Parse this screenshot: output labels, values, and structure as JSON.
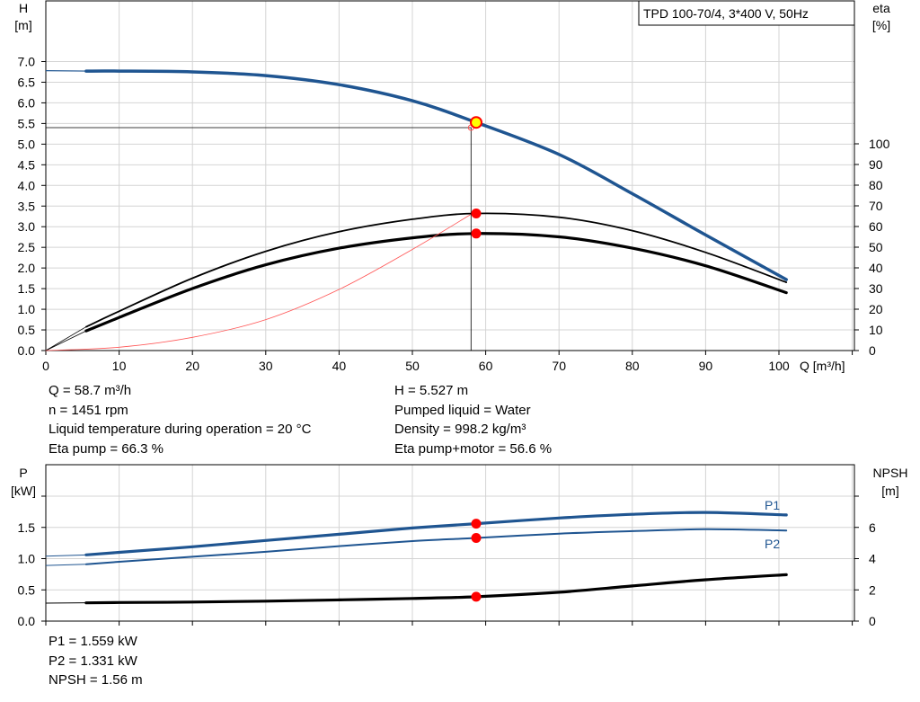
{
  "chart_data": [
    {
      "type": "line",
      "title": "TPD 100-70/4, 3*400 V, 50Hz",
      "xlabel": "Q [m³/h]",
      "ylabel_left": "H",
      "ylabel_left_unit": "[m]",
      "ylabel_right": "eta",
      "ylabel_right_unit": "[%]",
      "xlim": [
        0,
        110
      ],
      "ylim_left": [
        0,
        7.5
      ],
      "ylim_right_ticks": [
        0,
        100
      ],
      "x_ticks": [
        "0",
        "10",
        "20",
        "30",
        "40",
        "50",
        "60",
        "70",
        "80",
        "90",
        "100"
      ],
      "y_left_ticks": [
        "0.0",
        "0.5",
        "1.0",
        "1.5",
        "2.0",
        "2.5",
        "3.0",
        "3.5",
        "4.0",
        "4.5",
        "5.0",
        "5.5",
        "6.0",
        "6.5",
        "7.0"
      ],
      "y_right_ticks": [
        "0",
        "10",
        "20",
        "30",
        "40",
        "50",
        "60",
        "70",
        "80",
        "90",
        "100"
      ],
      "grid": true,
      "series": [
        {
          "key": "H",
          "color": "#1f5591",
          "x": [
            0,
            5.5,
            10,
            20,
            30,
            40,
            50,
            58.7,
            70,
            80,
            90,
            101
          ],
          "y": [
            6.78,
            6.77,
            6.77,
            6.75,
            6.66,
            6.44,
            6.05,
            5.527,
            4.75,
            3.8,
            2.8,
            1.72
          ]
        },
        {
          "key": "eta-pump",
          "color": "#000000",
          "x": [
            5.5,
            10,
            20,
            30,
            40,
            50,
            58.7,
            70,
            80,
            90,
            101
          ],
          "y": [
            11.5,
            19,
            35,
            48,
            57.5,
            63.5,
            66.3,
            64.5,
            58,
            47.5,
            33
          ]
        },
        {
          "key": "eta-pump-motor",
          "color": "#000000",
          "x": [
            5.5,
            10,
            20,
            30,
            40,
            50,
            58.7,
            70,
            80,
            90,
            101
          ],
          "y": [
            9.5,
            16,
            30,
            41.5,
            49.5,
            54.5,
            56.6,
            55,
            49.5,
            41,
            28
          ]
        },
        {
          "key": "system",
          "color": "#ff5555",
          "x": [
            0,
            10,
            20,
            30,
            40,
            50,
            58.0
          ],
          "y": [
            0,
            0.08,
            0.32,
            0.75,
            1.48,
            2.45,
            3.3
          ]
        }
      ],
      "operating_point": {
        "x": 58.7,
        "H": 5.527,
        "eta_pump": 66.3,
        "eta_pump_motor": 56.6
      },
      "reference_line": {
        "x": 58.0,
        "H": 5.4
      }
    },
    {
      "type": "line",
      "ylabel_left": "P",
      "ylabel_left_unit": "[kW]",
      "ylabel_right": "NPSH",
      "ylabel_right_unit": "[m]",
      "xlim": [
        0,
        110
      ],
      "ylim_left": [
        0,
        2.0
      ],
      "ylim_right": [
        0,
        8
      ],
      "y_left_ticks": [
        "0.0",
        "0.5",
        "1.0",
        "1.5"
      ],
      "y_right_ticks": [
        "0",
        "2",
        "4",
        "6"
      ],
      "grid": true,
      "series": [
        {
          "key": "P1",
          "name": "P1",
          "color": "#1f5591",
          "x": [
            0,
            5.5,
            10,
            20,
            30,
            40,
            50,
            58.7,
            70,
            80,
            90,
            101
          ],
          "y": [
            1.04,
            1.06,
            1.1,
            1.19,
            1.29,
            1.39,
            1.49,
            1.559,
            1.65,
            1.71,
            1.74,
            1.7
          ]
        },
        {
          "key": "P2",
          "name": "P2",
          "color": "#1f5591",
          "x": [
            0,
            5.5,
            10,
            20,
            30,
            40,
            50,
            58.7,
            70,
            80,
            90,
            101
          ],
          "y": [
            0.89,
            0.91,
            0.95,
            1.03,
            1.11,
            1.2,
            1.28,
            1.331,
            1.4,
            1.44,
            1.47,
            1.45
          ]
        },
        {
          "key": "NPSH",
          "color": "#000000",
          "x": [
            0,
            5.5,
            10,
            20,
            30,
            40,
            50,
            58.7,
            70,
            80,
            90,
            101
          ],
          "y": [
            1.15,
            1.17,
            1.19,
            1.22,
            1.28,
            1.36,
            1.45,
            1.56,
            1.85,
            2.25,
            2.65,
            2.97
          ]
        }
      ],
      "operating_point": {
        "x": 58.7,
        "P1": 1.559,
        "P2": 1.331,
        "NPSH": 1.56
      }
    }
  ],
  "readout_top": {
    "left": [
      "Q = 58.7 m³/h",
      "n = 1451 rpm",
      "Liquid temperature during operation = 20 °C",
      "Eta pump = 66.3 %"
    ],
    "right": [
      "H = 5.527 m",
      "Pumped liquid = Water",
      "Density = 998.2 kg/m³",
      "Eta pump+motor = 56.6 %"
    ]
  },
  "readout_bottom": [
    "P1 = 1.559 kW",
    "P2 = 1.331 kW",
    "NPSH = 1.56 m"
  ]
}
